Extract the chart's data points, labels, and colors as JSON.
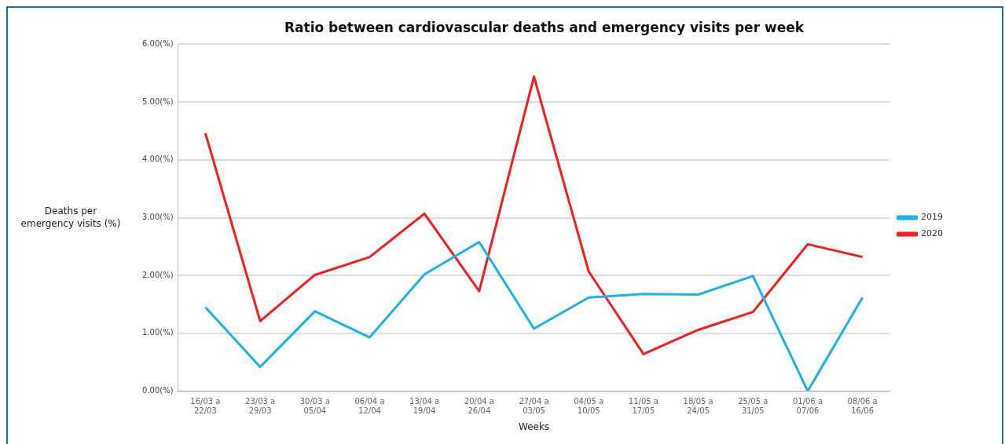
{
  "chart_data": {
    "type": "line",
    "title": "Ratio between cardiovascular deaths and emergency visits per week",
    "xlabel": "Weeks",
    "ylabel": "Deaths per\nemergency visits (%)",
    "categories": [
      "16/03 a\n22/03",
      "23/03 a\n29/03",
      "30/03 a\n05/04",
      "06/04 a\n12/04",
      "13/04 a\n19/04",
      "20/04 a\n26/04",
      "27/04 a\n03/05",
      "04/05 a\n10/05",
      "11/05 a\n17/05",
      "18/05 a\n24/05",
      "25/05 a\n31/05",
      "01/06 a\n07/06",
      "08/06 a\n16/06"
    ],
    "series": [
      {
        "name": "2019",
        "color": "#1ab2f0",
        "values": [
          1.45,
          0.42,
          1.38,
          0.93,
          2.02,
          2.58,
          1.08,
          1.62,
          1.68,
          1.67,
          1.99,
          0.0,
          1.62
        ]
      },
      {
        "name": "2020",
        "color": "#ff1a1a",
        "values": [
          4.46,
          1.21,
          2.01,
          2.32,
          3.07,
          1.73,
          5.44,
          2.07,
          0.64,
          1.06,
          1.37,
          2.54,
          2.32
        ]
      }
    ],
    "ylim": [
      0,
      6
    ],
    "yticks": [
      {
        "value": 0,
        "label": "0.00(%)"
      },
      {
        "value": 1,
        "label": "1.00(%)"
      },
      {
        "value": 2,
        "label": "2.00(%)"
      },
      {
        "value": 3,
        "label": "3.00(%)"
      },
      {
        "value": 4,
        "label": "4.00(%)"
      },
      {
        "value": 5,
        "label": "5.00(%)"
      },
      {
        "value": 6,
        "label": "6.00(%)"
      }
    ],
    "grid": "y",
    "legend": "right",
    "marker": "none",
    "line_style": "solid"
  }
}
